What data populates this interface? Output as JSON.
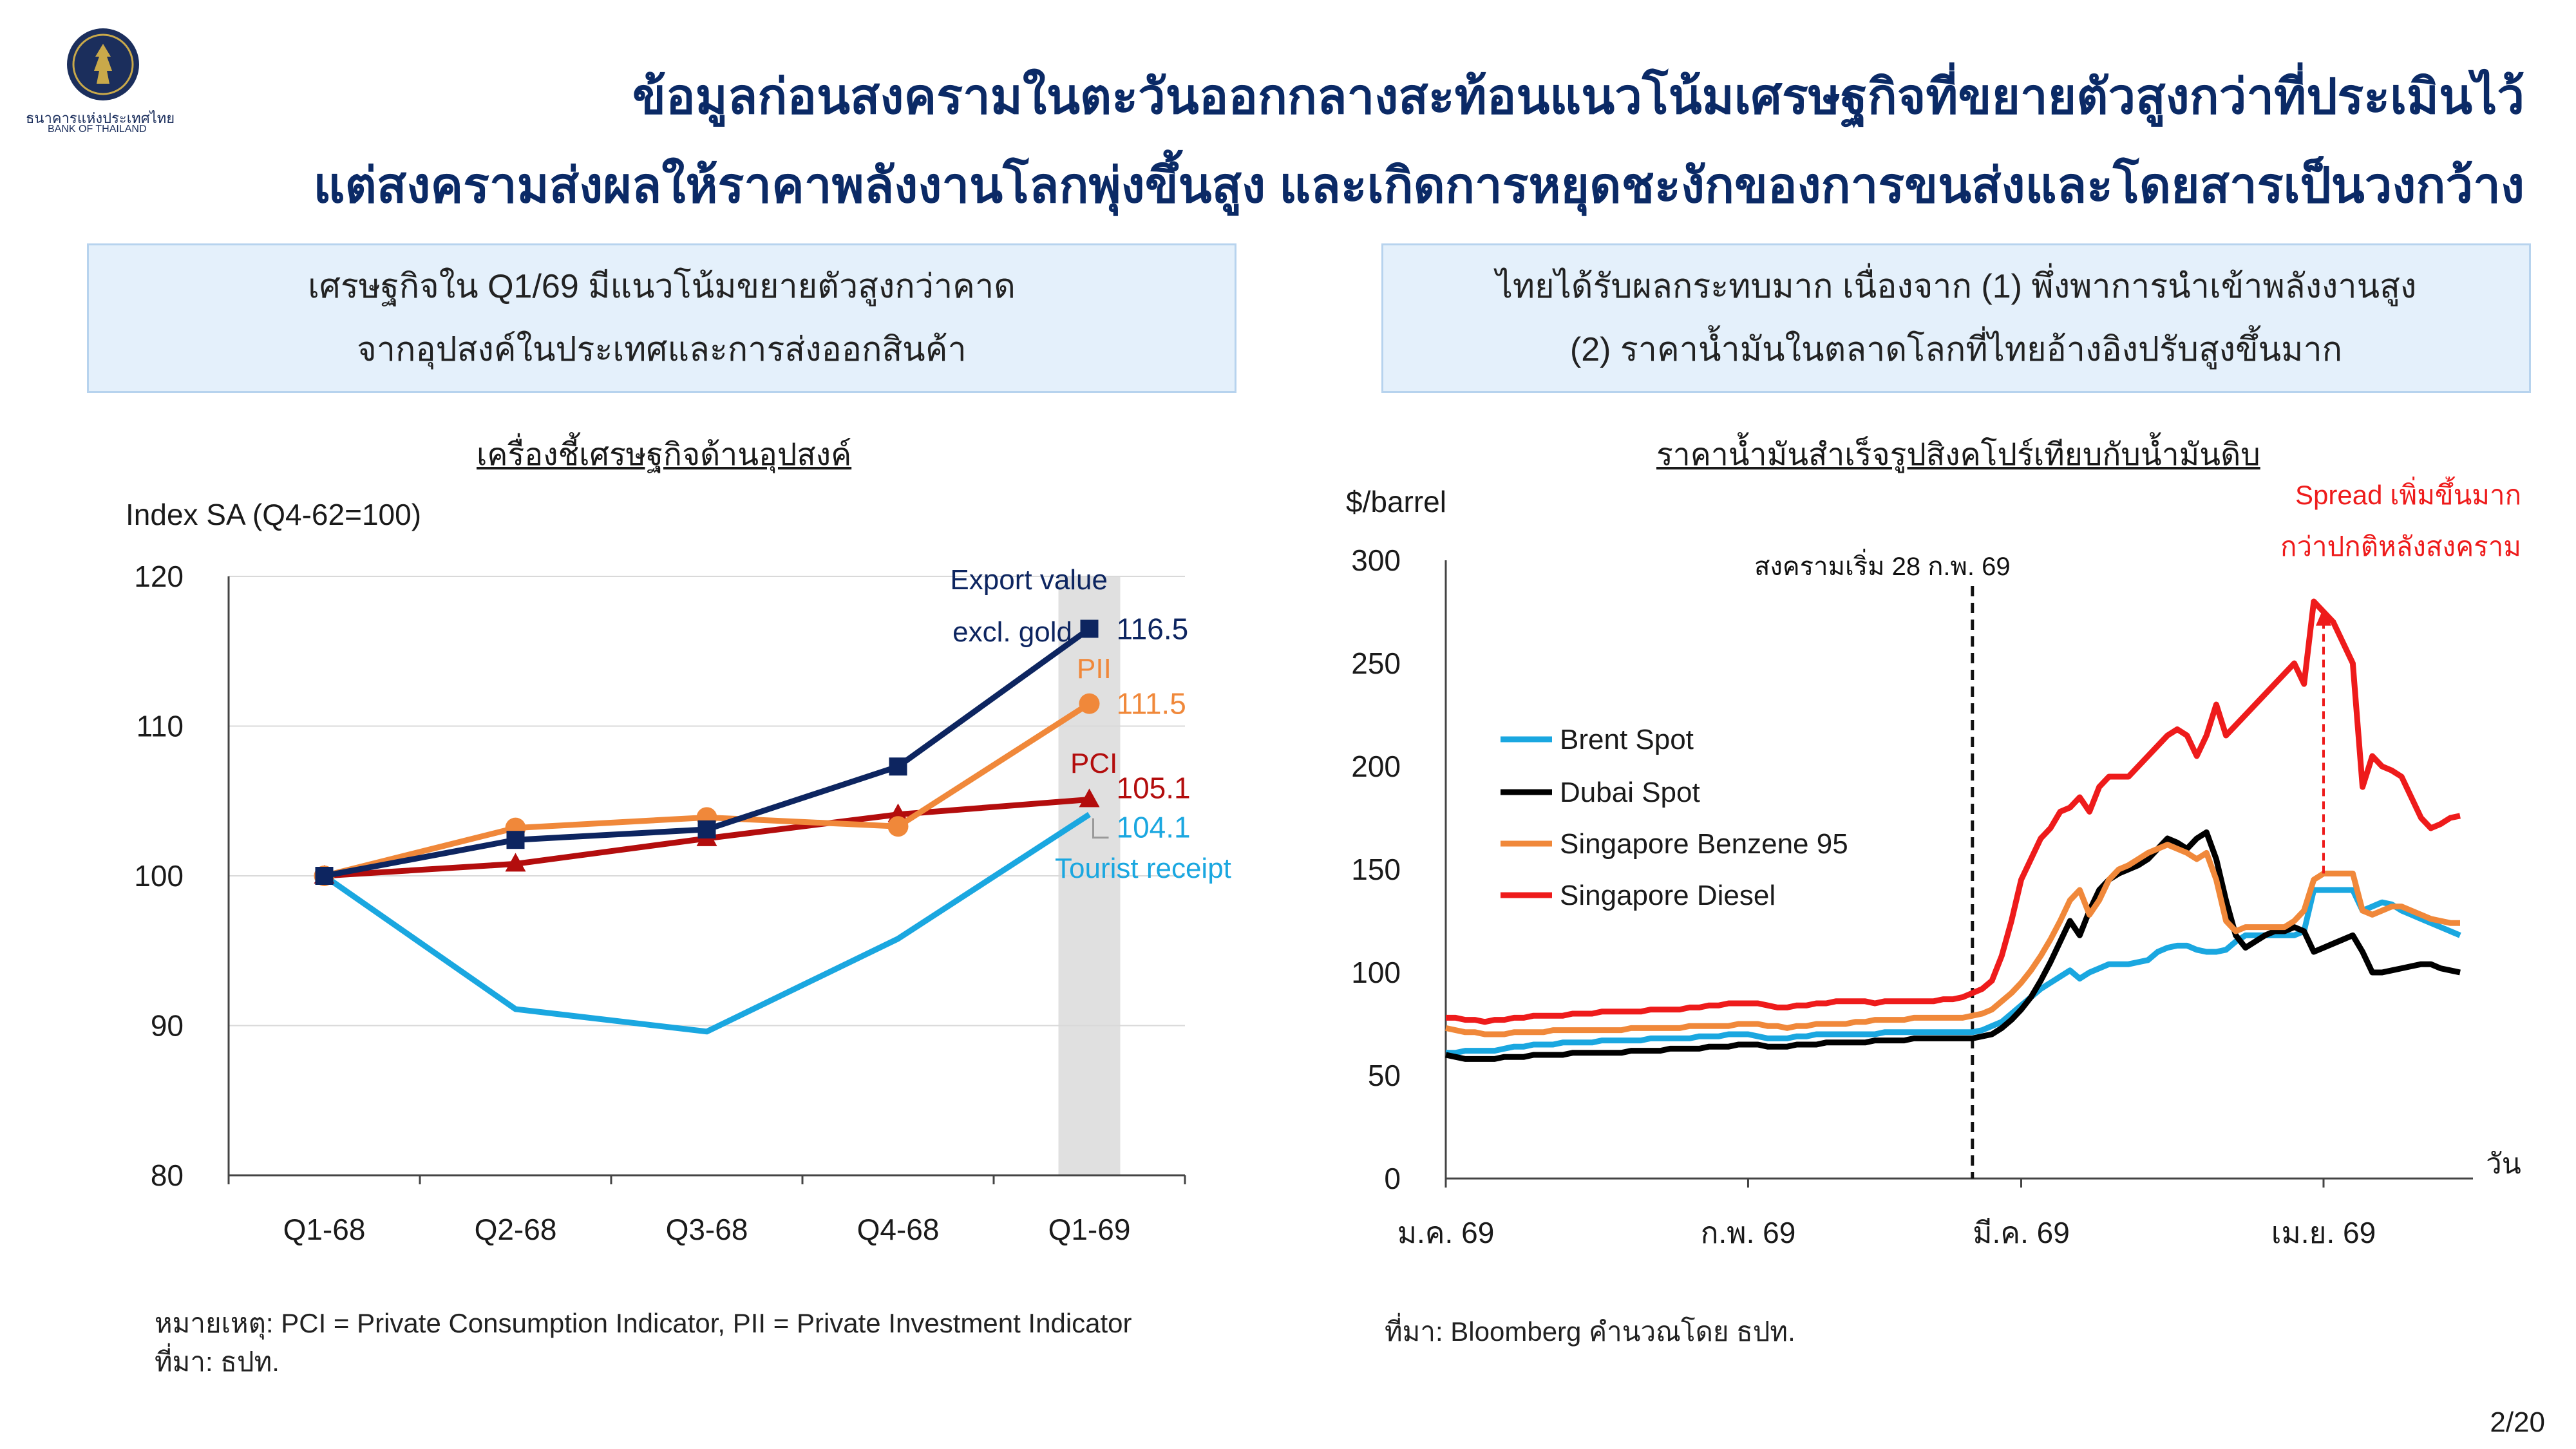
{
  "logo": {
    "name_th": "ธนาคารแห่งประเทศไทย",
    "name_en": "BANK OF THAILAND"
  },
  "title": {
    "line1": "ข้อมูลก่อนสงครามในตะวันออกกลางสะท้อนแนวโน้มเศรษฐกิจที่ขยายตัวสูงกว่าที่ประเมินไว้",
    "line2": "แต่สงครามส่งผลให้ราคาพลังงานโลกพุ่งขึ้นสูง และเกิดการหยุดชะงักของการขนส่งและโดยสารเป็นวงกว้าง"
  },
  "left_box": {
    "line1": "เศรษฐกิจใน Q1/69 มีแนวโน้มขยายตัวสูงกว่าคาด",
    "line2": "จากอุปสงค์ในประเทศและการส่งออกสินค้า"
  },
  "right_box": {
    "line1": "ไทยได้รับผลกระทบมาก เนื่องจาก (1) พึ่งพาการนำเข้าพลังงานสูง",
    "line2": "(2) ราคาน้ำมันในตลาดโลกที่ไทยอ้างอิงปรับสูงขึ้นมาก"
  },
  "left_note": {
    "line1": "หมายเหตุ: PCI = Private Consumption Indicator, PII = Private Investment Indicator",
    "line2": "ที่มา: ธปท."
  },
  "right_note": "ที่มา: Bloomberg คำนวณโดย ธปท.",
  "page_number": "2/20",
  "chart_data": [
    {
      "type": "line",
      "title": "เครื่องชี้เศรษฐกิจด้านอุปสงค์",
      "ylabel": "Index SA (Q4-62=100)",
      "ylim": [
        80,
        120
      ],
      "yticks": [
        "80",
        "90",
        "100",
        "110",
        "120"
      ],
      "categories": [
        "Q1-68",
        "Q2-68",
        "Q3-68",
        "Q4-68",
        "Q1-69"
      ],
      "highlight_category": "Q1-69",
      "grid": true,
      "series": [
        {
          "name_line1": "Export value",
          "name_line2": "excl. gold",
          "color": "#0d2560",
          "marker": "square",
          "values": [
            100,
            102.4,
            103.1,
            107.3,
            116.5
          ],
          "end_label": "116.5"
        },
        {
          "name": "PII",
          "color": "#f0883a",
          "marker": "circle",
          "values": [
            100,
            103.2,
            103.9,
            103.3,
            111.5
          ],
          "end_label": "111.5"
        },
        {
          "name": "PCI",
          "color": "#b30d0d",
          "marker": "triangle",
          "values": [
            100,
            100.8,
            102.5,
            104.1,
            105.1
          ],
          "end_label": "105.1"
        },
        {
          "name": "Tourist receipt",
          "color": "#1aa7e0",
          "marker": "none",
          "values": [
            100,
            91.1,
            89.6,
            95.8,
            104.1
          ],
          "end_label": "104.1"
        }
      ]
    },
    {
      "type": "line",
      "title": "ราคาน้ำมันสำเร็จรูปสิงคโปร์เทียบกับน้ำมันดิบ",
      "ylabel": "$/barrel",
      "xlabel": "วัน",
      "ylim": [
        0,
        300
      ],
      "yticks": [
        "0",
        "50",
        "100",
        "150",
        "200",
        "250",
        "300"
      ],
      "xticks": [
        {
          "label": "ม.ค. 69",
          "day": 1
        },
        {
          "label": "ก.พ. 69",
          "day": 32
        },
        {
          "label": "มี.ค. 69",
          "day": 60
        },
        {
          "label": "เม.ย. 69",
          "day": 91
        }
      ],
      "event_line": {
        "day": 55,
        "label": "สงครามเริ่ม 28 ก.พ. 69"
      },
      "annotation": {
        "line1": "Spread เพิ่มขึ้นมาก",
        "line2": "กว่าปกติหลังสงคราม",
        "day": 91,
        "from": 148,
        "to": 277
      },
      "legend_position": "middle-left",
      "days": [
        1,
        2,
        3,
        4,
        5,
        6,
        7,
        8,
        9,
        10,
        11,
        12,
        13,
        14,
        15,
        16,
        17,
        18,
        19,
        20,
        21,
        22,
        23,
        24,
        25,
        26,
        27,
        28,
        29,
        30,
        31,
        32,
        33,
        34,
        35,
        36,
        37,
        38,
        39,
        40,
        41,
        42,
        43,
        44,
        45,
        46,
        47,
        48,
        49,
        50,
        51,
        52,
        53,
        54,
        55,
        56,
        57,
        58,
        59,
        60,
        61,
        62,
        63,
        64,
        65,
        66,
        67,
        68,
        69,
        70,
        71,
        72,
        73,
        74,
        75,
        76,
        77,
        78,
        79,
        80,
        81,
        82,
        83,
        84,
        85,
        86,
        87,
        88,
        89,
        90,
        91,
        92,
        93,
        94,
        95,
        96,
        97,
        98,
        99,
        100,
        101,
        102,
        103,
        104,
        105
      ],
      "series": [
        {
          "name": "Brent Spot",
          "color": "#1aa7e0",
          "values": [
            61,
            61,
            62,
            62,
            62,
            62,
            63,
            64,
            64,
            65,
            65,
            65,
            66,
            66,
            66,
            66,
            67,
            67,
            67,
            67,
            67,
            68,
            68,
            68,
            68,
            68,
            69,
            69,
            69,
            70,
            70,
            70,
            69,
            68,
            68,
            68,
            69,
            69,
            70,
            70,
            70,
            70,
            70,
            70,
            70,
            71,
            71,
            71,
            71,
            71,
            71,
            71,
            71,
            71,
            71,
            72,
            74,
            76,
            80,
            84,
            88,
            92,
            95,
            98,
            101,
            97,
            100,
            102,
            104,
            104,
            104,
            105,
            106,
            110,
            112,
            113,
            113,
            111,
            110,
            110,
            111,
            115,
            118,
            118,
            118,
            118,
            118,
            118,
            120,
            140,
            140,
            140,
            140,
            140,
            130,
            132,
            134,
            133,
            130,
            128,
            126,
            124,
            122,
            120,
            118
          ]
        },
        {
          "name": "Dubai Spot",
          "color": "#000000",
          "values": [
            60,
            59,
            58,
            58,
            58,
            58,
            59,
            59,
            59,
            60,
            60,
            60,
            60,
            61,
            61,
            61,
            61,
            61,
            61,
            62,
            62,
            62,
            62,
            63,
            63,
            63,
            63,
            64,
            64,
            64,
            65,
            65,
            65,
            64,
            64,
            64,
            65,
            65,
            65,
            66,
            66,
            66,
            66,
            66,
            67,
            67,
            67,
            67,
            68,
            68,
            68,
            68,
            68,
            68,
            68,
            69,
            70,
            73,
            77,
            82,
            88,
            96,
            105,
            115,
            125,
            118,
            130,
            140,
            145,
            148,
            150,
            152,
            155,
            160,
            165,
            163,
            160,
            165,
            168,
            155,
            135,
            118,
            112,
            115,
            118,
            120,
            120,
            122,
            120,
            110,
            112,
            114,
            116,
            118,
            110,
            100,
            100,
            101,
            102,
            103,
            104,
            104,
            102,
            101,
            100
          ]
        },
        {
          "name": "Singapore Benzene 95",
          "color": "#f0883a",
          "values": [
            73,
            72,
            71,
            71,
            70,
            70,
            70,
            71,
            71,
            71,
            71,
            72,
            72,
            72,
            72,
            72,
            72,
            72,
            72,
            73,
            73,
            73,
            73,
            73,
            73,
            74,
            74,
            74,
            74,
            74,
            75,
            75,
            75,
            74,
            74,
            73,
            74,
            74,
            75,
            75,
            75,
            75,
            76,
            76,
            77,
            77,
            77,
            77,
            78,
            78,
            78,
            78,
            78,
            78,
            79,
            80,
            82,
            86,
            90,
            95,
            101,
            108,
            116,
            125,
            135,
            140,
            128,
            135,
            145,
            150,
            152,
            155,
            158,
            160,
            162,
            160,
            158,
            155,
            158,
            145,
            125,
            120,
            122,
            122,
            122,
            122,
            122,
            125,
            130,
            145,
            148,
            148,
            148,
            148,
            130,
            128,
            130,
            132,
            132,
            130,
            128,
            126,
            125,
            124,
            124
          ]
        },
        {
          "name": "Singapore Diesel",
          "color": "#ee1b1b",
          "values": [
            78,
            78,
            77,
            77,
            76,
            77,
            77,
            78,
            78,
            79,
            79,
            79,
            79,
            80,
            80,
            80,
            81,
            81,
            81,
            81,
            81,
            82,
            82,
            82,
            82,
            83,
            83,
            84,
            84,
            85,
            85,
            85,
            85,
            84,
            83,
            83,
            84,
            84,
            85,
            85,
            86,
            86,
            86,
            86,
            85,
            86,
            86,
            86,
            86,
            86,
            86,
            87,
            87,
            88,
            90,
            92,
            96,
            108,
            125,
            145,
            155,
            165,
            170,
            178,
            180,
            185,
            178,
            190,
            195,
            195,
            195,
            200,
            205,
            210,
            215,
            218,
            215,
            205,
            215,
            230,
            215,
            220,
            225,
            230,
            235,
            240,
            245,
            250,
            240,
            280,
            275,
            270,
            260,
            250,
            190,
            205,
            200,
            198,
            195,
            185,
            175,
            170,
            172,
            175,
            176
          ]
        }
      ]
    }
  ]
}
